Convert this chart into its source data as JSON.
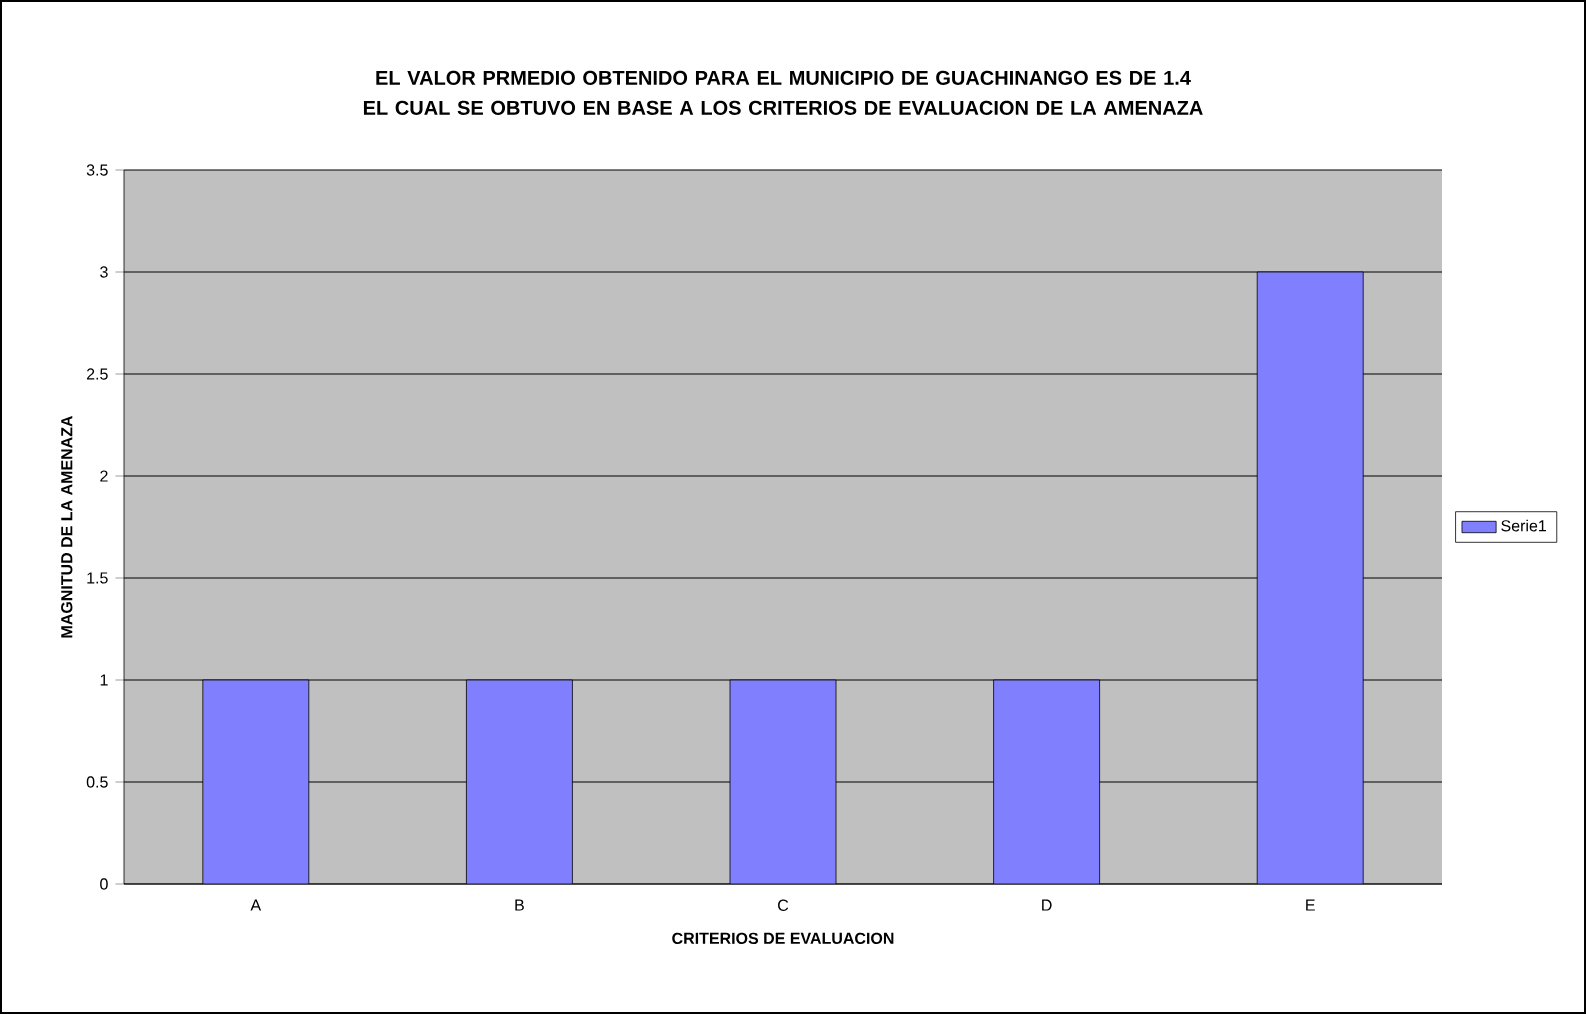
{
  "chart_data": {
    "type": "bar",
    "title": "EL VALOR PRMEDIO OBTENIDO PARA EL MUNICIPIO DE GUACHINANGO ES DE 1.4 EL CUAL SE OBTUVO EN BASE A LOS CRITERIOS DE EVALUACION DE LA AMENAZA",
    "xlabel": "CRITERIOS DE EVALUACION",
    "ylabel": "MAGNITUD DE LA AMENAZA",
    "categories": [
      "A",
      "B",
      "C",
      "D",
      "E"
    ],
    "series": [
      {
        "name": "Serie1",
        "color": "#8080ff",
        "values": [
          1,
          1,
          1,
          1,
          3
        ]
      }
    ],
    "ylim": [
      0,
      3.5
    ],
    "yticks": [
      0,
      0.5,
      1,
      1.5,
      2,
      2.5,
      3,
      3.5
    ],
    "grid": "y",
    "legend": "right"
  }
}
